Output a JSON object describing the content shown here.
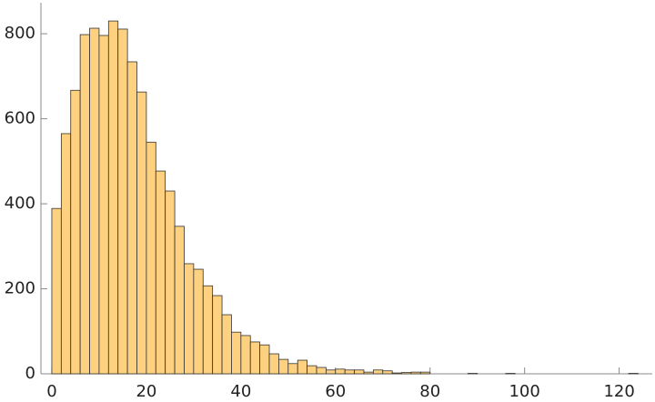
{
  "chart_data": {
    "type": "histogram",
    "bins": [
      0,
      2,
      4,
      6,
      8,
      10,
      12,
      14,
      16,
      18,
      20,
      22,
      24,
      26,
      28,
      30,
      32,
      34,
      36,
      38,
      40,
      42,
      44,
      46,
      48,
      50,
      52,
      54,
      56,
      58,
      60,
      62,
      64,
      66,
      68,
      70,
      72,
      74,
      76,
      78,
      80,
      82,
      84,
      86,
      88,
      90,
      92,
      94,
      96,
      98,
      100,
      102,
      104,
      106,
      108,
      110,
      112,
      114,
      116,
      118,
      120,
      122,
      124
    ],
    "values": [
      389,
      565,
      667,
      798,
      813,
      796,
      830,
      811,
      734,
      663,
      545,
      477,
      430,
      347,
      259,
      246,
      207,
      184,
      139,
      98,
      90,
      75,
      68,
      47,
      34,
      24,
      32,
      19,
      15,
      9,
      11,
      9,
      9,
      4,
      9,
      7,
      2,
      3,
      4,
      4,
      0,
      0,
      0,
      0,
      1,
      0,
      0,
      0,
      1,
      0,
      0,
      0,
      0,
      0,
      0,
      0,
      0,
      0,
      0,
      0,
      0,
      1
    ],
    "color": "#fdd17f",
    "xlim": [
      -2.3,
      127
    ],
    "ylim": [
      0,
      873
    ],
    "xticks": [
      0,
      20,
      40,
      60,
      80,
      100,
      120
    ],
    "yticks": [
      0,
      200,
      400,
      600,
      800
    ]
  }
}
